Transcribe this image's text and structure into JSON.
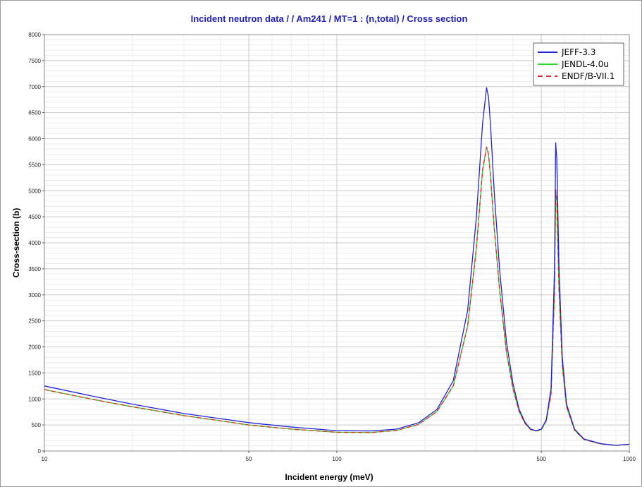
{
  "chart_data": {
    "type": "line",
    "title": "Incident neutron data / / Am241 / MT=1 : (n,total) / Cross section",
    "xlabel": "Incident energy (meV)",
    "ylabel": "Cross-section (b)",
    "x_scale": "log",
    "xlim": [
      10,
      1000
    ],
    "ylim": [
      0,
      8000
    ],
    "x_tick_labels": [
      "10",
      "50",
      "100",
      "500",
      "1000"
    ],
    "x_tick_values": [
      10,
      50,
      100,
      500,
      1000
    ],
    "y_tick_values": [
      0,
      500,
      1000,
      1500,
      2000,
      2500,
      3000,
      3500,
      4000,
      4500,
      5000,
      5500,
      6000,
      6500,
      7000,
      7500,
      8000
    ],
    "grid": true,
    "legend_position": "top-right",
    "series": [
      {
        "name": "JEFF-3.3",
        "color": "#2222dd",
        "dash": "solid",
        "x": [
          10,
          15,
          20,
          30,
          40,
          50,
          70,
          100,
          130,
          160,
          190,
          220,
          250,
          280,
          300,
          315,
          325,
          330,
          335,
          345,
          360,
          380,
          400,
          420,
          440,
          460,
          480,
          500,
          520,
          540,
          555,
          560,
          565,
          575,
          590,
          610,
          650,
          700,
          800,
          900,
          1000
        ],
        "y": [
          1250,
          1040,
          900,
          720,
          620,
          545,
          460,
          390,
          385,
          420,
          540,
          800,
          1350,
          2700,
          4500,
          6300,
          6980,
          6800,
          6300,
          5000,
          3500,
          2100,
          1300,
          800,
          550,
          420,
          390,
          420,
          600,
          1200,
          3500,
          5920,
          5600,
          3500,
          1800,
          900,
          420,
          230,
          140,
          110,
          130
        ]
      },
      {
        "name": "JENDL-4.0u",
        "color": "#22dd22",
        "dash": "solid",
        "x": [
          10,
          15,
          20,
          30,
          40,
          50,
          70,
          100,
          130,
          160,
          190,
          220,
          250,
          280,
          300,
          315,
          325,
          330,
          335,
          345,
          360,
          380,
          400,
          420,
          440,
          460,
          480,
          500,
          520,
          540,
          555,
          560,
          565,
          575,
          590,
          610,
          650,
          700,
          800,
          900,
          1000
        ],
        "y": [
          1180,
          980,
          850,
          680,
          580,
          500,
          420,
          360,
          355,
          395,
          510,
          760,
          1250,
          2400,
          3900,
          5400,
          5840,
          5700,
          5300,
          4300,
          3100,
          1900,
          1200,
          760,
          530,
          410,
          385,
          410,
          580,
          1100,
          3100,
          5020,
          4800,
          3100,
          1650,
          850,
          400,
          220,
          135,
          108,
          128
        ]
      },
      {
        "name": "ENDF/B-VII.1",
        "color": "#ee2222",
        "dash": "dashed",
        "x": [
          10,
          15,
          20,
          30,
          40,
          50,
          70,
          100,
          130,
          160,
          190,
          220,
          250,
          280,
          300,
          315,
          325,
          330,
          335,
          345,
          360,
          380,
          400,
          420,
          440,
          460,
          480,
          500,
          520,
          540,
          555,
          560,
          565,
          575,
          590,
          610,
          650,
          700,
          800,
          900,
          1000
        ],
        "y": [
          1180,
          980,
          850,
          680,
          580,
          500,
          420,
          360,
          355,
          395,
          510,
          760,
          1250,
          2400,
          3900,
          5400,
          5840,
          5700,
          5300,
          4300,
          3100,
          1900,
          1200,
          760,
          530,
          410,
          385,
          410,
          580,
          1100,
          3100,
          5020,
          4800,
          3100,
          1650,
          850,
          400,
          220,
          135,
          108,
          128
        ]
      }
    ]
  }
}
